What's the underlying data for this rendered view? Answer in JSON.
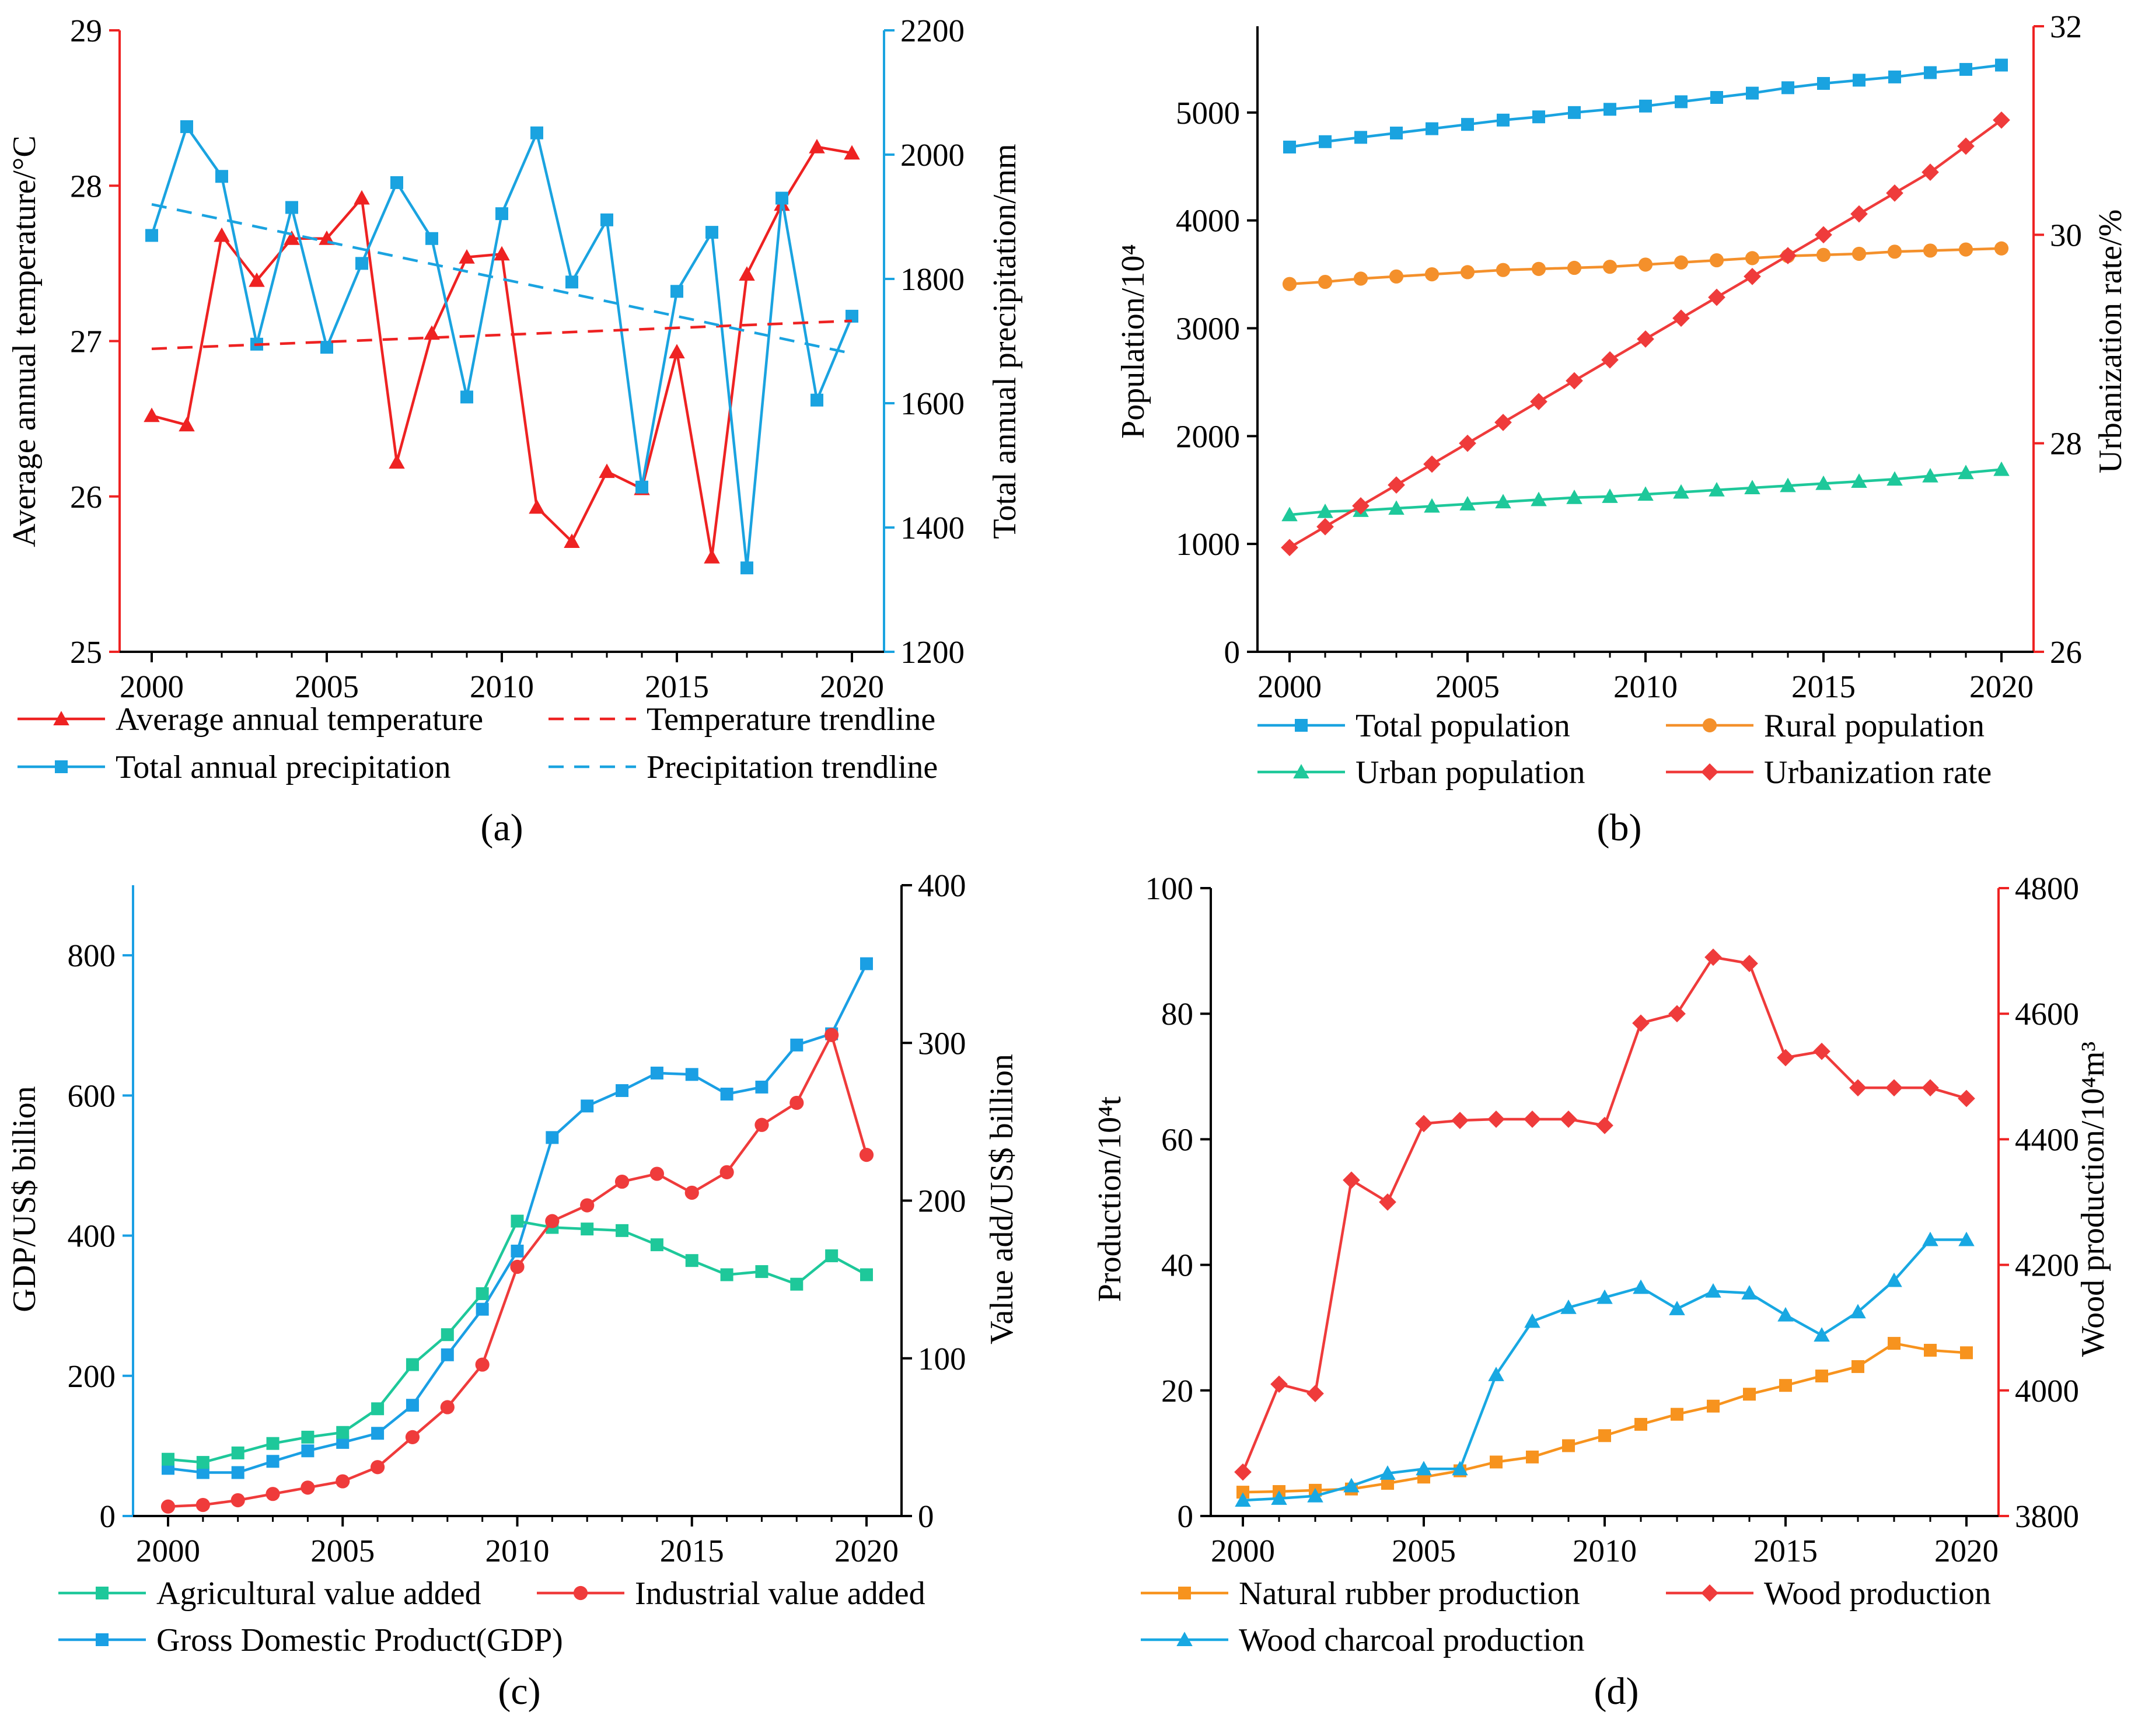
{
  "colors": {
    "red": "#ee2222",
    "blue": "#1aa3e0",
    "orange": "#f4902b",
    "green": "#1ec89a",
    "gdp_blue": "#1a9fe4",
    "industrial_red": "#ef3b3b",
    "rubber_orange": "#f7931e",
    "charcoal_blue": "#18a8e2"
  },
  "chart_data": [
    {
      "id": "a",
      "panel_label": "(a)",
      "type": "line",
      "x": [
        2000,
        2001,
        2002,
        2003,
        2004,
        2005,
        2006,
        2007,
        2008,
        2009,
        2010,
        2011,
        2012,
        2013,
        2014,
        2015,
        2016,
        2017,
        2018,
        2019,
        2020
      ],
      "xlim": [
        2000,
        2020
      ],
      "xticks": [
        "2000",
        "2005",
        "2010",
        "2015",
        "2020"
      ],
      "left_axis": {
        "label": "Average annual temperature/°C",
        "ylim": [
          25,
          29
        ],
        "ticks": [
          "25",
          "26",
          "27",
          "28",
          "29"
        ]
      },
      "right_axis": {
        "label": "Total annual precipitation/mm",
        "ylim": [
          1200,
          2200
        ],
        "ticks": [
          "1200",
          "1400",
          "1600",
          "1800",
          "2000",
          "2200"
        ]
      },
      "series": [
        {
          "name": "Average annual temperature",
          "axis": "left",
          "color": "#ee2222",
          "marker": "triangle",
          "values": [
            26.52,
            26.46,
            27.68,
            27.39,
            27.66,
            27.66,
            27.92,
            26.22,
            27.05,
            27.54,
            27.56,
            25.93,
            25.71,
            26.16,
            26.05,
            26.93,
            25.61,
            27.43,
            27.88,
            28.25,
            28.21
          ]
        },
        {
          "name": "Total annual precipitation",
          "axis": "right",
          "color": "#1aa3e0",
          "marker": "square",
          "values": [
            1870,
            2045,
            1965,
            1695,
            1915,
            1690,
            1825,
            1955,
            1865,
            1610,
            1905,
            2035,
            1795,
            1895,
            1465,
            1780,
            1875,
            1335,
            1930,
            1605,
            1740
          ]
        },
        {
          "name": "Temperature trendline",
          "axis": "left",
          "color": "#ee2222",
          "dashed": true,
          "x": [
            2000,
            2020
          ],
          "values": [
            26.95,
            27.13
          ]
        },
        {
          "name": "Precipitation trendline",
          "axis": "right",
          "color": "#1aa3e0",
          "dashed": true,
          "x": [
            2000,
            2020
          ],
          "values": [
            1920,
            1680
          ]
        }
      ]
    },
    {
      "id": "b",
      "panel_label": "(b)",
      "type": "line",
      "x": [
        2000,
        2001,
        2002,
        2003,
        2004,
        2005,
        2006,
        2007,
        2008,
        2009,
        2010,
        2011,
        2012,
        2013,
        2014,
        2015,
        2016,
        2017,
        2018,
        2019,
        2020
      ],
      "xlim": [
        2000,
        2020
      ],
      "xticks": [
        "2000",
        "2005",
        "2010",
        "2015",
        "2020"
      ],
      "left_axis": {
        "label": "Population/10⁴",
        "ylim": [
          0,
          5800
        ],
        "ticks": [
          "0",
          "1000",
          "2000",
          "3000",
          "4000",
          "5000"
        ]
      },
      "right_axis": {
        "label": "Urbanization rate/%",
        "ylim": [
          26,
          32
        ],
        "ticks": [
          "26",
          "28",
          "30",
          "32"
        ]
      },
      "series": [
        {
          "name": "Total population",
          "axis": "left",
          "color": "#1aa3e0",
          "marker": "square",
          "values": [
            4680,
            4730,
            4770,
            4810,
            4850,
            4890,
            4930,
            4960,
            5000,
            5030,
            5060,
            5100,
            5140,
            5180,
            5230,
            5270,
            5300,
            5330,
            5370,
            5400,
            5440
          ]
        },
        {
          "name": "Rural population",
          "axis": "left",
          "color": "#f4902b",
          "marker": "circle",
          "values": [
            3410,
            3430,
            3460,
            3480,
            3500,
            3520,
            3540,
            3550,
            3560,
            3570,
            3590,
            3610,
            3630,
            3650,
            3670,
            3680,
            3690,
            3710,
            3720,
            3730,
            3740
          ]
        },
        {
          "name": "Urban population",
          "axis": "left",
          "color": "#1ec89a",
          "marker": "triangle",
          "values": [
            1270,
            1300,
            1310,
            1330,
            1350,
            1370,
            1390,
            1410,
            1430,
            1440,
            1460,
            1480,
            1500,
            1520,
            1540,
            1560,
            1580,
            1600,
            1630,
            1660,
            1690
          ]
        },
        {
          "name": "Urbanization rate",
          "axis": "right",
          "color": "#ef3b3b",
          "marker": "diamond",
          "values": [
            27.0,
            27.2,
            27.4,
            27.6,
            27.8,
            28.0,
            28.2,
            28.4,
            28.6,
            28.8,
            29.0,
            29.2,
            29.4,
            29.6,
            29.8,
            30.0,
            30.2,
            30.4,
            30.6,
            30.85,
            31.1
          ]
        }
      ]
    },
    {
      "id": "c",
      "panel_label": "(c)",
      "type": "line",
      "x": [
        2000,
        2001,
        2002,
        2003,
        2004,
        2005,
        2006,
        2007,
        2008,
        2009,
        2010,
        2011,
        2012,
        2013,
        2014,
        2015,
        2016,
        2017,
        2018,
        2019,
        2020
      ],
      "xlim": [
        2000,
        2020
      ],
      "xticks": [
        "2000",
        "2005",
        "2010",
        "2015",
        "2020"
      ],
      "left_axis": {
        "label": "GDP/US$ billion",
        "ylim": [
          0,
          900
        ],
        "ticks": [
          "0",
          "200",
          "400",
          "600",
          "800"
        ]
      },
      "right_axis": {
        "label": "Value add/US$ billion",
        "ylim": [
          0,
          400
        ],
        "ticks": [
          "0",
          "100",
          "200",
          "300",
          "400"
        ]
      },
      "series": [
        {
          "name": "Gross Domestic Product(GDP)",
          "axis": "left",
          "color": "#1a9fe4",
          "marker": "square",
          "values": [
            68,
            62,
            62,
            78,
            93,
            105,
            118,
            158,
            230,
            295,
            378,
            540,
            585,
            607,
            632,
            630,
            602,
            612,
            672,
            688,
            788
          ]
        },
        {
          "name": "Agricultural value added",
          "axis": "right",
          "color": "#1ec89a",
          "marker": "square",
          "values": [
            36,
            34,
            40,
            46,
            50,
            53,
            68,
            96,
            115,
            141,
            187,
            183,
            182,
            181,
            172,
            162,
            153,
            155,
            147,
            165,
            153
          ]
        },
        {
          "name": "Industrial value added",
          "axis": "right",
          "color": "#ef3b3b",
          "marker": "circle",
          "values": [
            6,
            7,
            10,
            14,
            18,
            22,
            31,
            50,
            69,
            96,
            158,
            187,
            197,
            212,
            217,
            205,
            218,
            248,
            262,
            305,
            229
          ]
        }
      ]
    },
    {
      "id": "d",
      "panel_label": "(d)",
      "type": "line",
      "x": [
        2000,
        2001,
        2002,
        2003,
        2004,
        2005,
        2006,
        2007,
        2008,
        2009,
        2010,
        2011,
        2012,
        2013,
        2014,
        2015,
        2016,
        2017,
        2018,
        2019,
        2020
      ],
      "xlim": [
        2000,
        2020
      ],
      "xticks": [
        "2000",
        "2005",
        "2010",
        "2015",
        "2020"
      ],
      "left_axis": {
        "label": "Production/10⁴t",
        "ylim": [
          0,
          100
        ],
        "ticks": [
          "0",
          "20",
          "40",
          "60",
          "80",
          "100"
        ]
      },
      "right_axis": {
        "label": "Wood production/10⁴m³",
        "ylim": [
          3800,
          4800
        ],
        "ticks": [
          "3800",
          "4000",
          "4200",
          "4400",
          "4600",
          "4800"
        ]
      },
      "series": [
        {
          "name": "Natural rubber production",
          "axis": "left",
          "color": "#f7931e",
          "marker": "square",
          "values": [
            3.8,
            3.9,
            4.1,
            4.3,
            5.2,
            6.2,
            7.2,
            8.6,
            9.4,
            11.2,
            12.8,
            14.6,
            16.2,
            17.5,
            19.4,
            20.8,
            22.3,
            23.8,
            27.5,
            26.4,
            26.0
          ]
        },
        {
          "name": "Wood production",
          "axis": "right",
          "color": "#ef3b3b",
          "marker": "diamond",
          "values": [
            3870,
            4010,
            3995,
            4335,
            4300,
            4425,
            4430,
            4432,
            4432,
            4432,
            4422,
            4585,
            4600,
            4690,
            4680,
            4530,
            4540,
            4482,
            4482,
            4482,
            4465
          ]
        },
        {
          "name": "Wood charcoal production",
          "axis": "left",
          "color": "#18a8e2",
          "marker": "triangle",
          "values": [
            2.5,
            2.8,
            3.2,
            4.8,
            6.8,
            7.5,
            7.5,
            22.5,
            31.0,
            33.2,
            34.8,
            36.4,
            33.0,
            35.8,
            35.5,
            32.0,
            28.8,
            32.5,
            37.5,
            44.0,
            44.0
          ]
        }
      ]
    }
  ],
  "legends": {
    "a": [
      {
        "label": "Average annual temperature",
        "series": "Average annual temperature"
      },
      {
        "label": "Temperature trendline",
        "series": "Temperature trendline"
      },
      {
        "label": "Total annual precipitation",
        "series": "Total annual precipitation"
      },
      {
        "label": "Precipitation trendline",
        "series": "Precipitation trendline"
      }
    ],
    "b": [
      {
        "label": "Total population",
        "series": "Total population"
      },
      {
        "label": "Rural population",
        "series": "Rural population"
      },
      {
        "label": "Urban population",
        "series": "Urban population"
      },
      {
        "label": "Urbanization rate",
        "series": "Urbanization rate"
      }
    ],
    "c": [
      {
        "label": "Agricultural value added",
        "series": "Agricultural value added"
      },
      {
        "label": "Industrial value added",
        "series": "Industrial value added"
      },
      {
        "label": "Gross Domestic Product(GDP)",
        "series": "Gross Domestic Product(GDP)"
      }
    ],
    "d": [
      {
        "label": "Natural rubber production",
        "series": "Natural rubber production"
      },
      {
        "label": "Wood production",
        "series": "Wood production"
      },
      {
        "label": "Wood charcoal production",
        "series": "Wood charcoal production"
      }
    ]
  }
}
